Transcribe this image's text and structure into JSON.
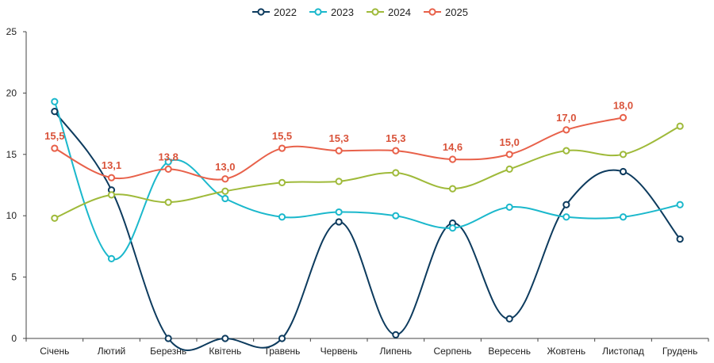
{
  "chart_data": {
    "type": "line",
    "title": "",
    "xlabel": "",
    "ylabel": "",
    "ylim": [
      0,
      25
    ],
    "yticks": [
      0,
      5,
      10,
      15,
      20,
      25
    ],
    "grid": false,
    "legend_position": "top-center",
    "categories": [
      "Січень",
      "Лютий",
      "Березнь",
      "Квітень",
      "Травень",
      "Червень",
      "Липень",
      "Серпень",
      "Вересень",
      "Жовтень",
      "Листопад",
      "Грудень"
    ],
    "series": [
      {
        "name": "2022",
        "color": "#0d3b5e",
        "values": [
          18.5,
          12.1,
          0,
          0,
          0,
          9.5,
          0.3,
          9.4,
          1.6,
          10.9,
          13.6,
          8.1
        ]
      },
      {
        "name": "2023",
        "color": "#1bb8cc",
        "values": [
          19.3,
          6.5,
          14.4,
          11.4,
          9.9,
          10.3,
          10.0,
          9.0,
          10.7,
          9.9,
          9.9,
          10.9
        ]
      },
      {
        "name": "2024",
        "color": "#9fba3a",
        "values": [
          9.8,
          11.7,
          11.1,
          12.0,
          12.7,
          12.8,
          13.5,
          12.2,
          13.8,
          15.3,
          15.0,
          17.3
        ]
      },
      {
        "name": "2025",
        "color": "#e8614a",
        "values": [
          15.5,
          13.1,
          13.8,
          13.0,
          15.5,
          15.3,
          15.3,
          14.6,
          15.0,
          17.0,
          18.0,
          null
        ]
      }
    ],
    "data_labels": {
      "series": "2025",
      "labels": [
        "15,5",
        "13,1",
        "13,8",
        "13,0",
        "15,5",
        "15,3",
        "15,3",
        "14,6",
        "15,0",
        "17,0",
        "18,0"
      ]
    }
  }
}
